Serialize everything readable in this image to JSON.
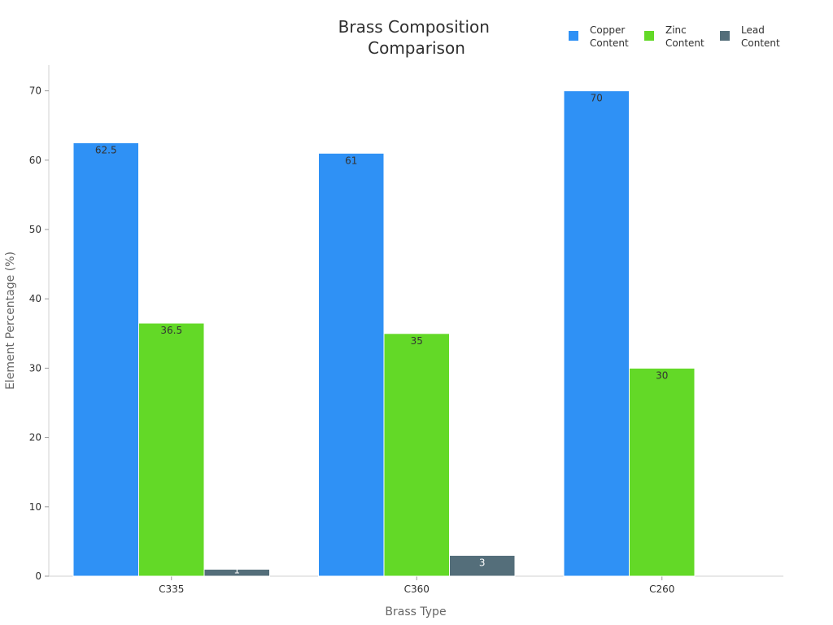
{
  "chart_data": {
    "type": "bar",
    "title": "Brass Composition Comparison",
    "xlabel": "Brass Type",
    "ylabel": "Element Percentage (%)",
    "categories": [
      "C335",
      "C360",
      "C260"
    ],
    "ylim": [
      0,
      74
    ],
    "yticks": [
      0,
      10,
      20,
      30,
      40,
      50,
      60,
      70
    ],
    "grid": false,
    "legend_position": "top-right",
    "series": [
      {
        "name": "Copper Content",
        "values": [
          62.5,
          61,
          70
        ],
        "color": "#2f91f5",
        "labels": [
          "62.5",
          "61",
          "70"
        ]
      },
      {
        "name": "Zinc Content",
        "values": [
          36.5,
          35,
          30
        ],
        "color": "#63d927",
        "labels": [
          "36.5",
          "35",
          "30"
        ]
      },
      {
        "name": "Lead Content",
        "values": [
          1,
          3,
          0
        ],
        "color": "#546e7a",
        "labels": [
          "1",
          "3",
          ""
        ]
      }
    ]
  }
}
